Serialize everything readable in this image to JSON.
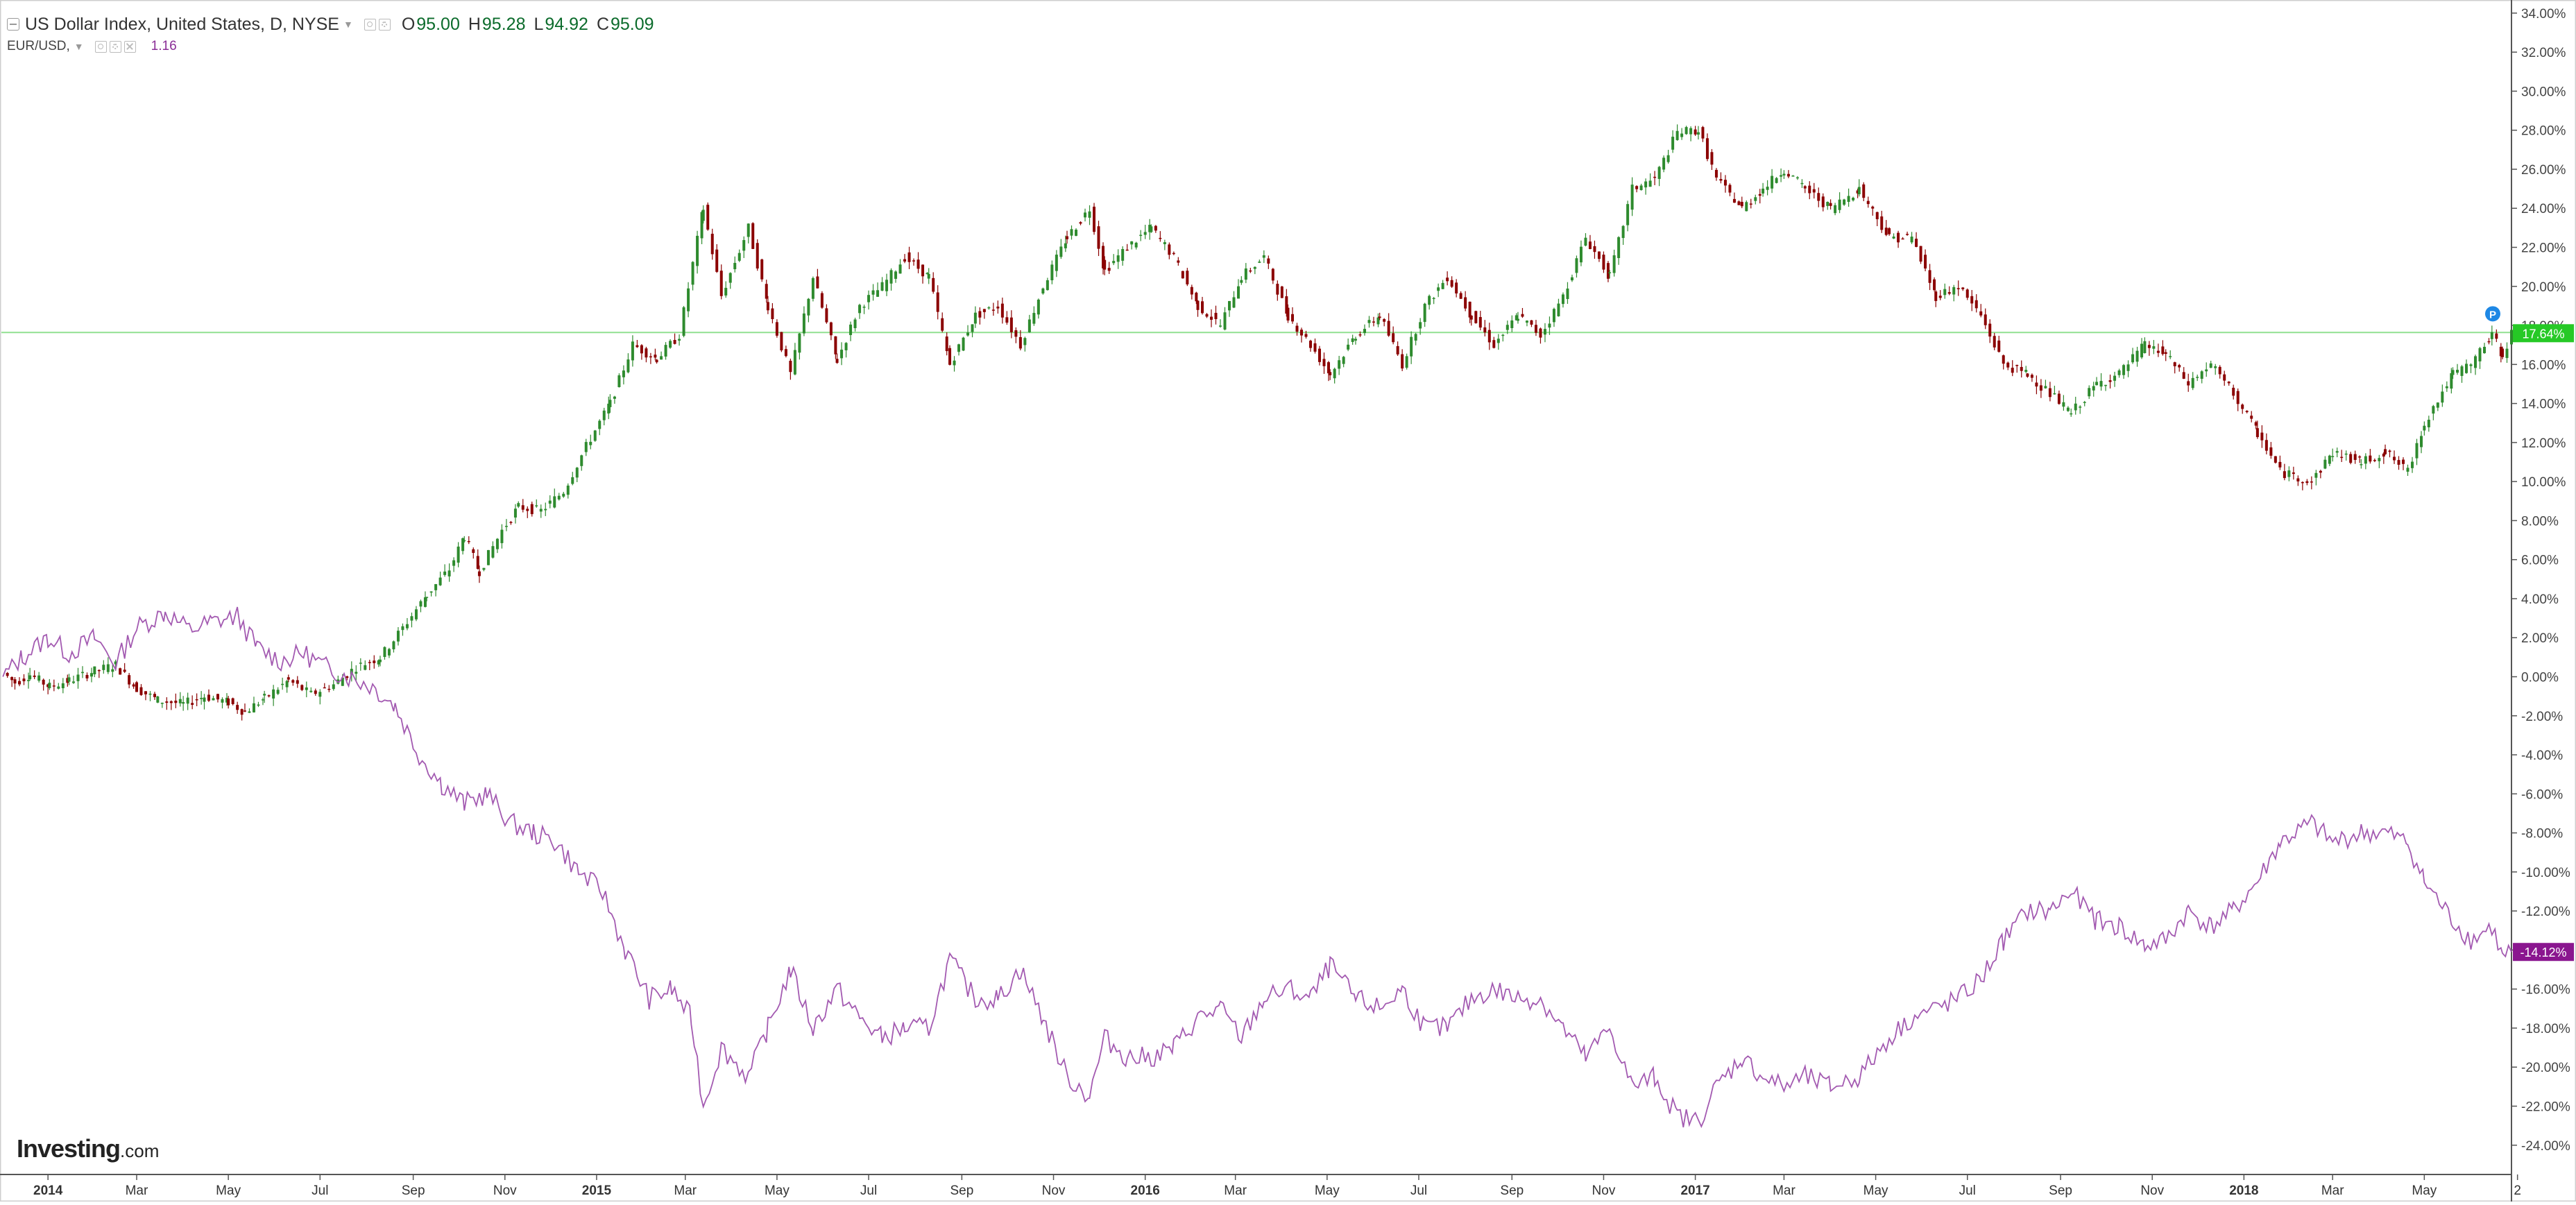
{
  "legend": {
    "symbol_title": "US Dollar Index, United States, D, NYSE",
    "open_key": "O",
    "open": "95.00",
    "high_key": "H",
    "high": "95.28",
    "low_key": "L",
    "low": "94.92",
    "close_key": "C",
    "close": "95.09",
    "compare_symbol": "EUR/USD,",
    "compare_value": "1.16",
    "icons": [
      "collapse-icon",
      "eye-icon",
      "gear-icon",
      "close-icon"
    ]
  },
  "brand": {
    "name": "Investing",
    "suffix": ".com"
  },
  "chart_data": {
    "type": "line",
    "percent_scale": true,
    "x_start": "2013-12-01",
    "x_end": "2018-06-28",
    "ylim": [
      -25.5,
      34.6
    ],
    "y_ticks": [
      34,
      32,
      30,
      28,
      26,
      24,
      22,
      20,
      18,
      16,
      14,
      12,
      10,
      8,
      6,
      4,
      2,
      0,
      -2,
      -4,
      -6,
      -8,
      -10,
      -12,
      -14,
      -16,
      -18,
      -20,
      -22,
      -24
    ],
    "y_tick_labels": [
      "34.00%",
      "32.00%",
      "30.00%",
      "28.00%",
      "26.00%",
      "24.00%",
      "22.00%",
      "20.00%",
      "18.00%",
      "16.00%",
      "14.00%",
      "12.00%",
      "10.00%",
      "8.00%",
      "6.00%",
      "4.00%",
      "2.00%",
      "0.00%",
      "-2.00%",
      "-4.00%",
      "-6.00%",
      "-8.00%",
      "-10.00%",
      "-12.00%",
      "-14.00%",
      "-16.00%",
      "-18.00%",
      "-20.00%",
      "-22.00%",
      "-24.00%"
    ],
    "x_ticks": [
      {
        "label": "2014",
        "date": "2014-01-01",
        "bold": true
      },
      {
        "label": "Mar",
        "date": "2014-03-01"
      },
      {
        "label": "May",
        "date": "2014-05-01"
      },
      {
        "label": "Jul",
        "date": "2014-07-01"
      },
      {
        "label": "Sep",
        "date": "2014-09-01"
      },
      {
        "label": "Nov",
        "date": "2014-11-01"
      },
      {
        "label": "2015",
        "date": "2015-01-01",
        "bold": true
      },
      {
        "label": "Mar",
        "date": "2015-03-01"
      },
      {
        "label": "May",
        "date": "2015-05-01"
      },
      {
        "label": "Jul",
        "date": "2015-07-01"
      },
      {
        "label": "Sep",
        "date": "2015-09-01"
      },
      {
        "label": "Nov",
        "date": "2015-11-01"
      },
      {
        "label": "2016",
        "date": "2016-01-01",
        "bold": true
      },
      {
        "label": "Mar",
        "date": "2016-03-01"
      },
      {
        "label": "May",
        "date": "2016-05-01"
      },
      {
        "label": "Jul",
        "date": "2016-07-01"
      },
      {
        "label": "Sep",
        "date": "2016-09-01"
      },
      {
        "label": "Nov",
        "date": "2016-11-01"
      },
      {
        "label": "2017",
        "date": "2017-01-01",
        "bold": true
      },
      {
        "label": "Mar",
        "date": "2017-03-01"
      },
      {
        "label": "May",
        "date": "2017-05-01"
      },
      {
        "label": "Jul",
        "date": "2017-07-01"
      },
      {
        "label": "Sep",
        "date": "2017-09-01"
      },
      {
        "label": "Nov",
        "date": "2017-11-01"
      },
      {
        "label": "2018",
        "date": "2018-01-01",
        "bold": true
      },
      {
        "label": "Mar",
        "date": "2018-03-01"
      },
      {
        "label": "May",
        "date": "2018-05-01"
      },
      {
        "label": "2",
        "date": "2018-07-02"
      }
    ],
    "grid": false,
    "series": [
      {
        "style": "candlestick",
        "up_color": "#2e8b2e",
        "down_color": "#8b0000",
        "last_value_label": "17.64%",
        "last_value_color": "#26c926",
        "price_line_value": 17.64,
        "price_line_color": "#90e090",
        "marker_label": "P",
        "marker_color": "#1e88e5",
        "points": [
          [
            "2013-12-02",
            0.2
          ],
          [
            "2013-12-10",
            -0.3
          ],
          [
            "2013-12-20",
            0.1
          ],
          [
            "2014-01-02",
            -0.5
          ],
          [
            "2014-01-15",
            -0.2
          ],
          [
            "2014-02-01",
            0.3
          ],
          [
            "2014-02-15",
            0.6
          ],
          [
            "2014-03-01",
            -0.6
          ],
          [
            "2014-03-15",
            -1.2
          ],
          [
            "2014-04-01",
            -1.4
          ],
          [
            "2014-04-15",
            -1.0
          ],
          [
            "2014-05-01",
            -1.3
          ],
          [
            "2014-05-12",
            -1.8
          ],
          [
            "2014-05-25",
            -1.1
          ],
          [
            "2014-06-10",
            -0.2
          ],
          [
            "2014-06-25",
            -0.9
          ],
          [
            "2014-07-10",
            -0.4
          ],
          [
            "2014-07-25",
            0.5
          ],
          [
            "2014-08-10",
            1.0
          ],
          [
            "2014-08-25",
            2.5
          ],
          [
            "2014-09-10",
            4.2
          ],
          [
            "2014-09-25",
            5.5
          ],
          [
            "2014-10-05",
            7.2
          ],
          [
            "2014-10-15",
            5.4
          ],
          [
            "2014-10-30",
            7.5
          ],
          [
            "2014-11-10",
            8.7
          ],
          [
            "2014-11-25",
            8.5
          ],
          [
            "2014-12-10",
            9.5
          ],
          [
            "2014-12-25",
            11.8
          ],
          [
            "2015-01-10",
            14.0
          ],
          [
            "2015-01-25",
            17.0
          ],
          [
            "2015-02-10",
            16.3
          ],
          [
            "2015-02-25",
            17.5
          ],
          [
            "2015-03-13",
            24.0
          ],
          [
            "2015-03-25",
            19.5
          ],
          [
            "2015-04-12",
            23.0
          ],
          [
            "2015-04-25",
            19.0
          ],
          [
            "2015-05-10",
            15.5
          ],
          [
            "2015-05-25",
            20.5
          ],
          [
            "2015-06-10",
            16.2
          ],
          [
            "2015-06-25",
            19.0
          ],
          [
            "2015-07-10",
            20.0
          ],
          [
            "2015-07-25",
            21.5
          ],
          [
            "2015-08-10",
            20.5
          ],
          [
            "2015-08-24",
            16.0
          ],
          [
            "2015-09-10",
            18.5
          ],
          [
            "2015-09-25",
            19.0
          ],
          [
            "2015-10-10",
            17.0
          ],
          [
            "2015-10-25",
            20.0
          ],
          [
            "2015-11-10",
            22.5
          ],
          [
            "2015-11-25",
            24.0
          ],
          [
            "2015-12-05",
            20.8
          ],
          [
            "2015-12-20",
            22.0
          ],
          [
            "2016-01-05",
            23.0
          ],
          [
            "2016-01-20",
            21.5
          ],
          [
            "2016-02-05",
            19.0
          ],
          [
            "2016-02-20",
            18.0
          ],
          [
            "2016-03-05",
            20.5
          ],
          [
            "2016-03-20",
            21.5
          ],
          [
            "2016-04-05",
            18.5
          ],
          [
            "2016-04-20",
            17.0
          ],
          [
            "2016-05-03",
            15.5
          ],
          [
            "2016-05-20",
            17.5
          ],
          [
            "2016-06-05",
            18.5
          ],
          [
            "2016-06-20",
            16.0
          ],
          [
            "2016-07-05",
            19.0
          ],
          [
            "2016-07-20",
            20.5
          ],
          [
            "2016-08-05",
            18.5
          ],
          [
            "2016-08-20",
            17.0
          ],
          [
            "2016-09-05",
            18.5
          ],
          [
            "2016-09-20",
            17.5
          ],
          [
            "2016-10-05",
            19.5
          ],
          [
            "2016-10-20",
            22.5
          ],
          [
            "2016-11-05",
            20.5
          ],
          [
            "2016-11-20",
            25.0
          ],
          [
            "2016-12-05",
            25.5
          ],
          [
            "2016-12-20",
            27.9
          ],
          [
            "2017-01-03",
            28.0
          ],
          [
            "2017-01-15",
            25.5
          ],
          [
            "2017-02-01",
            24.0
          ],
          [
            "2017-02-15",
            25.0
          ],
          [
            "2017-03-01",
            26.0
          ],
          [
            "2017-03-15",
            25.0
          ],
          [
            "2017-04-01",
            24.0
          ],
          [
            "2017-04-20",
            25.0
          ],
          [
            "2017-05-10",
            22.5
          ],
          [
            "2017-05-25",
            22.5
          ],
          [
            "2017-06-10",
            19.5
          ],
          [
            "2017-06-25",
            20.0
          ],
          [
            "2017-07-10",
            18.5
          ],
          [
            "2017-07-25",
            16.0
          ],
          [
            "2017-08-10",
            15.5
          ],
          [
            "2017-08-25",
            14.5
          ],
          [
            "2017-09-08",
            13.5
          ],
          [
            "2017-09-25",
            15.0
          ],
          [
            "2017-10-10",
            15.5
          ],
          [
            "2017-10-27",
            17.0
          ],
          [
            "2017-11-10",
            16.5
          ],
          [
            "2017-11-25",
            15.0
          ],
          [
            "2017-12-10",
            16.0
          ],
          [
            "2017-12-25",
            14.5
          ],
          [
            "2018-01-10",
            12.5
          ],
          [
            "2018-01-25",
            10.5
          ],
          [
            "2018-02-15",
            10.0
          ],
          [
            "2018-03-01",
            11.5
          ],
          [
            "2018-03-20",
            11.0
          ],
          [
            "2018-04-05",
            11.5
          ],
          [
            "2018-04-20",
            10.5
          ],
          [
            "2018-05-01",
            13.0
          ],
          [
            "2018-05-20",
            15.5
          ],
          [
            "2018-06-01",
            16.0
          ],
          [
            "2018-06-15",
            17.5
          ],
          [
            "2018-06-22",
            16.5
          ],
          [
            "2018-06-28",
            17.6
          ]
        ]
      },
      {
        "style": "line",
        "color": "#a35ab1",
        "last_value_label": "-14.12%",
        "last_value_color": "#8a168f",
        "points": [
          [
            "2013-12-02",
            0.0
          ],
          [
            "2013-12-15",
            1.0
          ],
          [
            "2014-01-01",
            2.0
          ],
          [
            "2014-01-15",
            1.2
          ],
          [
            "2014-02-01",
            2.0
          ],
          [
            "2014-02-15",
            0.7
          ],
          [
            "2014-03-01",
            2.5
          ],
          [
            "2014-03-20",
            3.3
          ],
          [
            "2014-04-05",
            2.4
          ],
          [
            "2014-04-20",
            2.8
          ],
          [
            "2014-05-07",
            3.1
          ],
          [
            "2014-05-20",
            1.5
          ],
          [
            "2014-06-05",
            0.8
          ],
          [
            "2014-06-20",
            1.2
          ],
          [
            "2014-07-05",
            0.5
          ],
          [
            "2014-07-20",
            0.0
          ],
          [
            "2014-08-05",
            -0.5
          ],
          [
            "2014-08-20",
            -1.5
          ],
          [
            "2014-09-05",
            -4.0
          ],
          [
            "2014-09-20",
            -5.5
          ],
          [
            "2014-10-05",
            -6.5
          ],
          [
            "2014-10-20",
            -6.0
          ],
          [
            "2014-11-05",
            -7.5
          ],
          [
            "2014-11-20",
            -8.0
          ],
          [
            "2014-12-05",
            -8.5
          ],
          [
            "2014-12-20",
            -10.0
          ],
          [
            "2015-01-05",
            -11.0
          ],
          [
            "2015-01-20",
            -14.0
          ],
          [
            "2015-02-05",
            -16.5
          ],
          [
            "2015-02-20",
            -16.0
          ],
          [
            "2015-03-05",
            -17.5
          ],
          [
            "2015-03-13",
            -22.0
          ],
          [
            "2015-03-25",
            -19.0
          ],
          [
            "2015-04-12",
            -20.5
          ],
          [
            "2015-04-25",
            -18.0
          ],
          [
            "2015-05-10",
            -15.0
          ],
          [
            "2015-05-25",
            -18.0
          ],
          [
            "2015-06-10",
            -16.0
          ],
          [
            "2015-06-25",
            -17.5
          ],
          [
            "2015-07-10",
            -18.5
          ],
          [
            "2015-07-25",
            -18.0
          ],
          [
            "2015-08-10",
            -18.0
          ],
          [
            "2015-08-24",
            -14.5
          ],
          [
            "2015-09-10",
            -16.5
          ],
          [
            "2015-09-25",
            -16.5
          ],
          [
            "2015-10-10",
            -15.0
          ],
          [
            "2015-10-25",
            -17.5
          ],
          [
            "2015-11-10",
            -20.5
          ],
          [
            "2015-11-25",
            -21.5
          ],
          [
            "2015-12-05",
            -18.5
          ],
          [
            "2015-12-20",
            -19.5
          ],
          [
            "2016-01-05",
            -19.5
          ],
          [
            "2016-01-20",
            -19.0
          ],
          [
            "2016-02-05",
            -17.5
          ],
          [
            "2016-02-20",
            -17.0
          ],
          [
            "2016-03-05",
            -18.5
          ],
          [
            "2016-03-20",
            -16.5
          ],
          [
            "2016-04-05",
            -16.0
          ],
          [
            "2016-04-20",
            -16.5
          ],
          [
            "2016-05-03",
            -14.8
          ],
          [
            "2016-05-20",
            -16.5
          ],
          [
            "2016-06-05",
            -17.0
          ],
          [
            "2016-06-20",
            -16.0
          ],
          [
            "2016-07-05",
            -18.0
          ],
          [
            "2016-07-20",
            -18.0
          ],
          [
            "2016-08-05",
            -16.5
          ],
          [
            "2016-08-20",
            -16.0
          ],
          [
            "2016-09-05",
            -16.5
          ],
          [
            "2016-09-20",
            -16.5
          ],
          [
            "2016-10-05",
            -18.0
          ],
          [
            "2016-10-20",
            -19.5
          ],
          [
            "2016-11-05",
            -18.0
          ],
          [
            "2016-11-20",
            -21.0
          ],
          [
            "2016-12-05",
            -20.5
          ],
          [
            "2016-12-20",
            -22.5
          ],
          [
            "2017-01-03",
            -22.8
          ],
          [
            "2017-01-15",
            -21.0
          ],
          [
            "2017-02-01",
            -19.5
          ],
          [
            "2017-02-15",
            -20.5
          ],
          [
            "2017-03-01",
            -21.0
          ],
          [
            "2017-03-15",
            -20.5
          ],
          [
            "2017-04-01",
            -21.0
          ],
          [
            "2017-04-20",
            -20.5
          ],
          [
            "2017-05-10",
            -18.5
          ],
          [
            "2017-05-25",
            -17.5
          ],
          [
            "2017-06-10",
            -17.0
          ],
          [
            "2017-06-25",
            -16.5
          ],
          [
            "2017-07-10",
            -15.5
          ],
          [
            "2017-07-25",
            -13.5
          ],
          [
            "2017-08-10",
            -12.0
          ],
          [
            "2017-08-25",
            -12.0
          ],
          [
            "2017-09-08",
            -11.0
          ],
          [
            "2017-09-25",
            -12.5
          ],
          [
            "2017-10-10",
            -12.8
          ],
          [
            "2017-10-27",
            -13.8
          ],
          [
            "2017-11-10",
            -13.5
          ],
          [
            "2017-11-25",
            -12.0
          ],
          [
            "2017-12-10",
            -12.8
          ],
          [
            "2017-12-25",
            -12.0
          ],
          [
            "2018-01-10",
            -10.5
          ],
          [
            "2018-01-25",
            -8.5
          ],
          [
            "2018-02-15",
            -7.5
          ],
          [
            "2018-03-01",
            -8.5
          ],
          [
            "2018-03-20",
            -8.0
          ],
          [
            "2018-04-05",
            -8.0
          ],
          [
            "2018-04-20",
            -8.5
          ],
          [
            "2018-05-01",
            -10.5
          ],
          [
            "2018-05-20",
            -12.5
          ],
          [
            "2018-06-01",
            -13.5
          ],
          [
            "2018-06-15",
            -12.8
          ],
          [
            "2018-06-22",
            -14.4
          ],
          [
            "2018-06-28",
            -14.1
          ]
        ]
      }
    ]
  }
}
